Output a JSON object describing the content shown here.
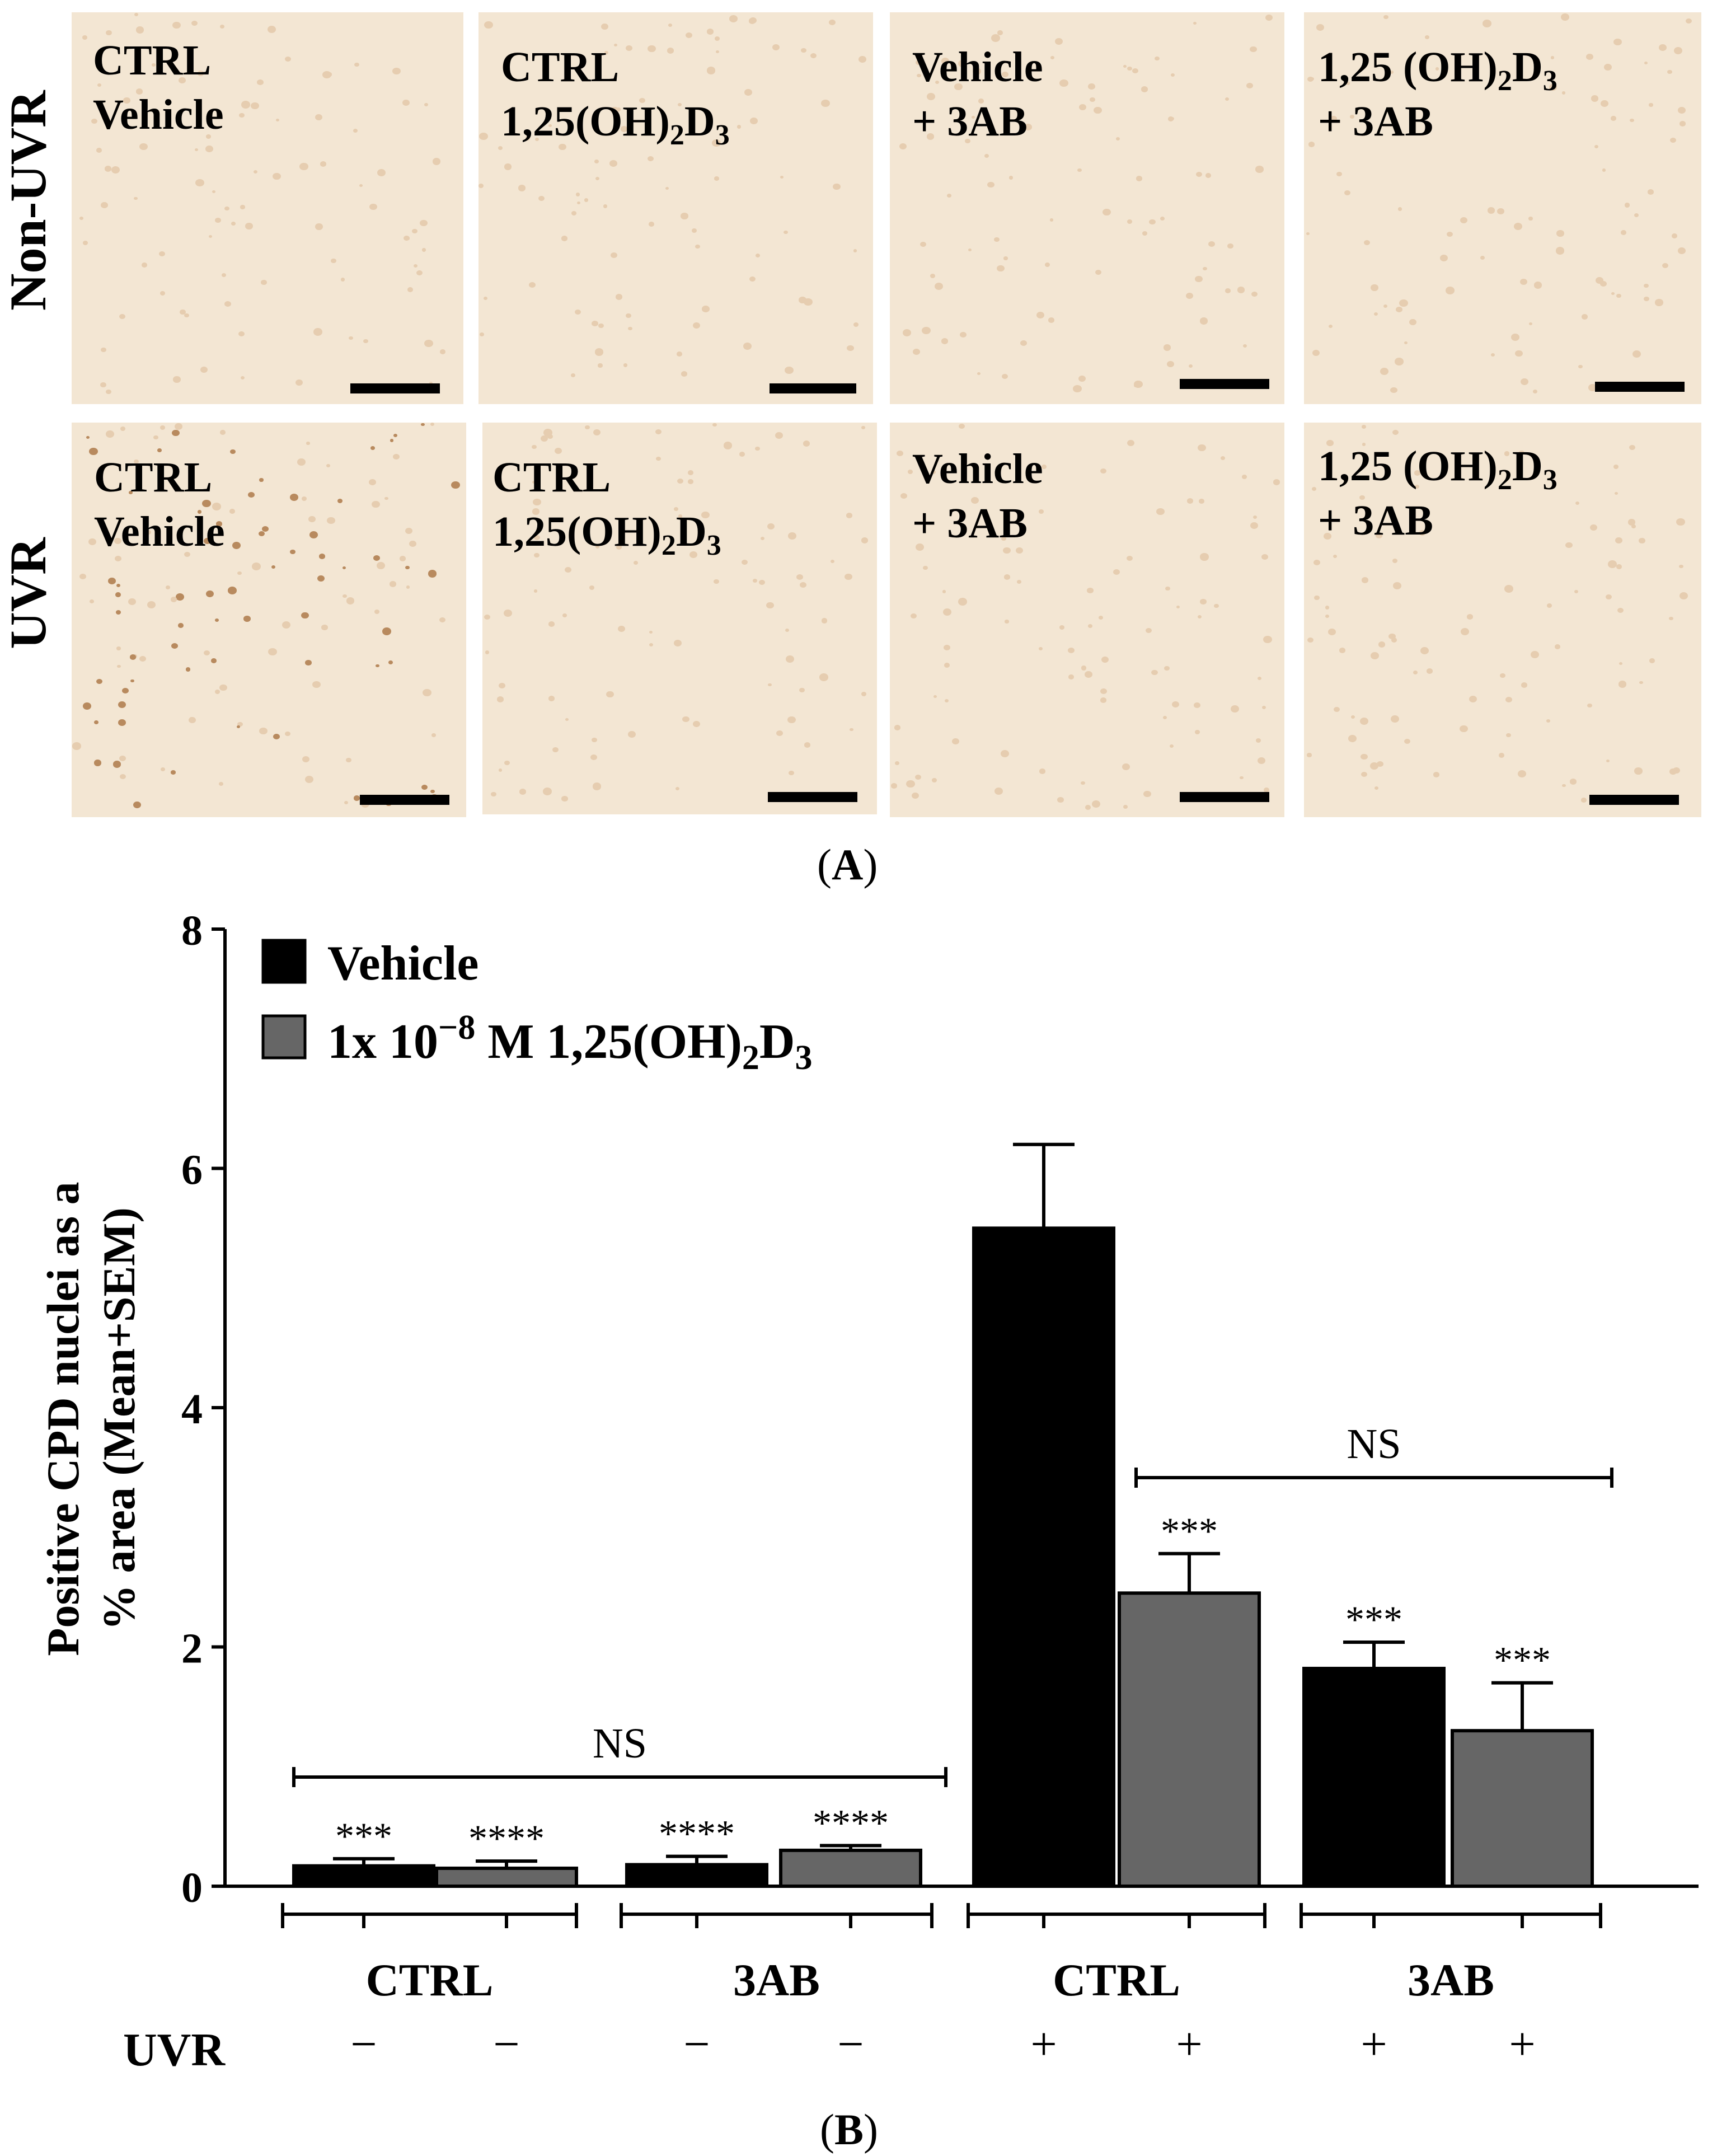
{
  "panel_a": {
    "caption_open": "(",
    "caption_letter": "A",
    "caption_close": ")",
    "row_labels": [
      "Non-UVR",
      "UVR"
    ],
    "images": [
      {
        "line1": "CTRL",
        "line2": "Vehicle",
        "sub": ""
      },
      {
        "line1": "CTRL",
        "line2": "1,25(OH)",
        "sub": "2",
        "tail": "D",
        "sub2": "3"
      },
      {
        "line1": "Vehicle",
        "line2": "+ 3AB"
      },
      {
        "line1": "1,25 (OH)",
        "sub": "2",
        "tail": "D",
        "sub2": "3",
        "line2": "+ 3AB"
      }
    ]
  },
  "panel_b": {
    "caption_open": "(",
    "caption_letter": "B",
    "caption_close": ")"
  },
  "chart_data": {
    "type": "bar",
    "ylabel_line1": "Positive CPD nuclei as a",
    "ylabel_line2": "% area (Mean+SEM)",
    "ylim": [
      0,
      8
    ],
    "yticks": [
      "0",
      "2",
      "4",
      "6",
      "8"
    ],
    "legend": {
      "placement": "top-left",
      "vehicle": "Vehicle",
      "treated_prefix": "1x 10",
      "treated_exp": "−8",
      "treated_mid": " M 1,25(OH)",
      "treated_sub": "2",
      "treated_tail": "D",
      "treated_sub2": "3"
    },
    "colors": {
      "vehicle": "#000000",
      "treated": "#666666"
    },
    "bars": [
      {
        "group": "CTRL",
        "series": "Vehicle",
        "uvr": "−",
        "value": 0.17,
        "sem": 0.06,
        "sig": "***"
      },
      {
        "group": "CTRL",
        "series": "1,25(OH)2D3",
        "uvr": "−",
        "value": 0.15,
        "sem": 0.06,
        "sig": "****"
      },
      {
        "group": "3AB",
        "series": "Vehicle",
        "uvr": "−",
        "value": 0.18,
        "sem": 0.07,
        "sig": "****"
      },
      {
        "group": "3AB",
        "series": "1,25(OH)2D3",
        "uvr": "−",
        "value": 0.3,
        "sem": 0.04,
        "sig": "****"
      },
      {
        "group": "CTRL",
        "series": "Vehicle",
        "uvr": "+",
        "value": 5.5,
        "sem": 0.7,
        "sig": ""
      },
      {
        "group": "CTRL",
        "series": "1,25(OH)2D3",
        "uvr": "+",
        "value": 2.45,
        "sem": 0.33,
        "sig": "***"
      },
      {
        "group": "3AB",
        "series": "Vehicle",
        "uvr": "+",
        "value": 1.82,
        "sem": 0.22,
        "sig": "***"
      },
      {
        "group": "3AB",
        "series": "1,25(OH)2D3",
        "uvr": "+",
        "value": 1.3,
        "sem": 0.4,
        "sig": "***"
      }
    ],
    "groups": [
      "CTRL",
      "3AB",
      "CTRL",
      "3AB"
    ],
    "uvr_label": "UVR",
    "ns_label": "NS"
  }
}
